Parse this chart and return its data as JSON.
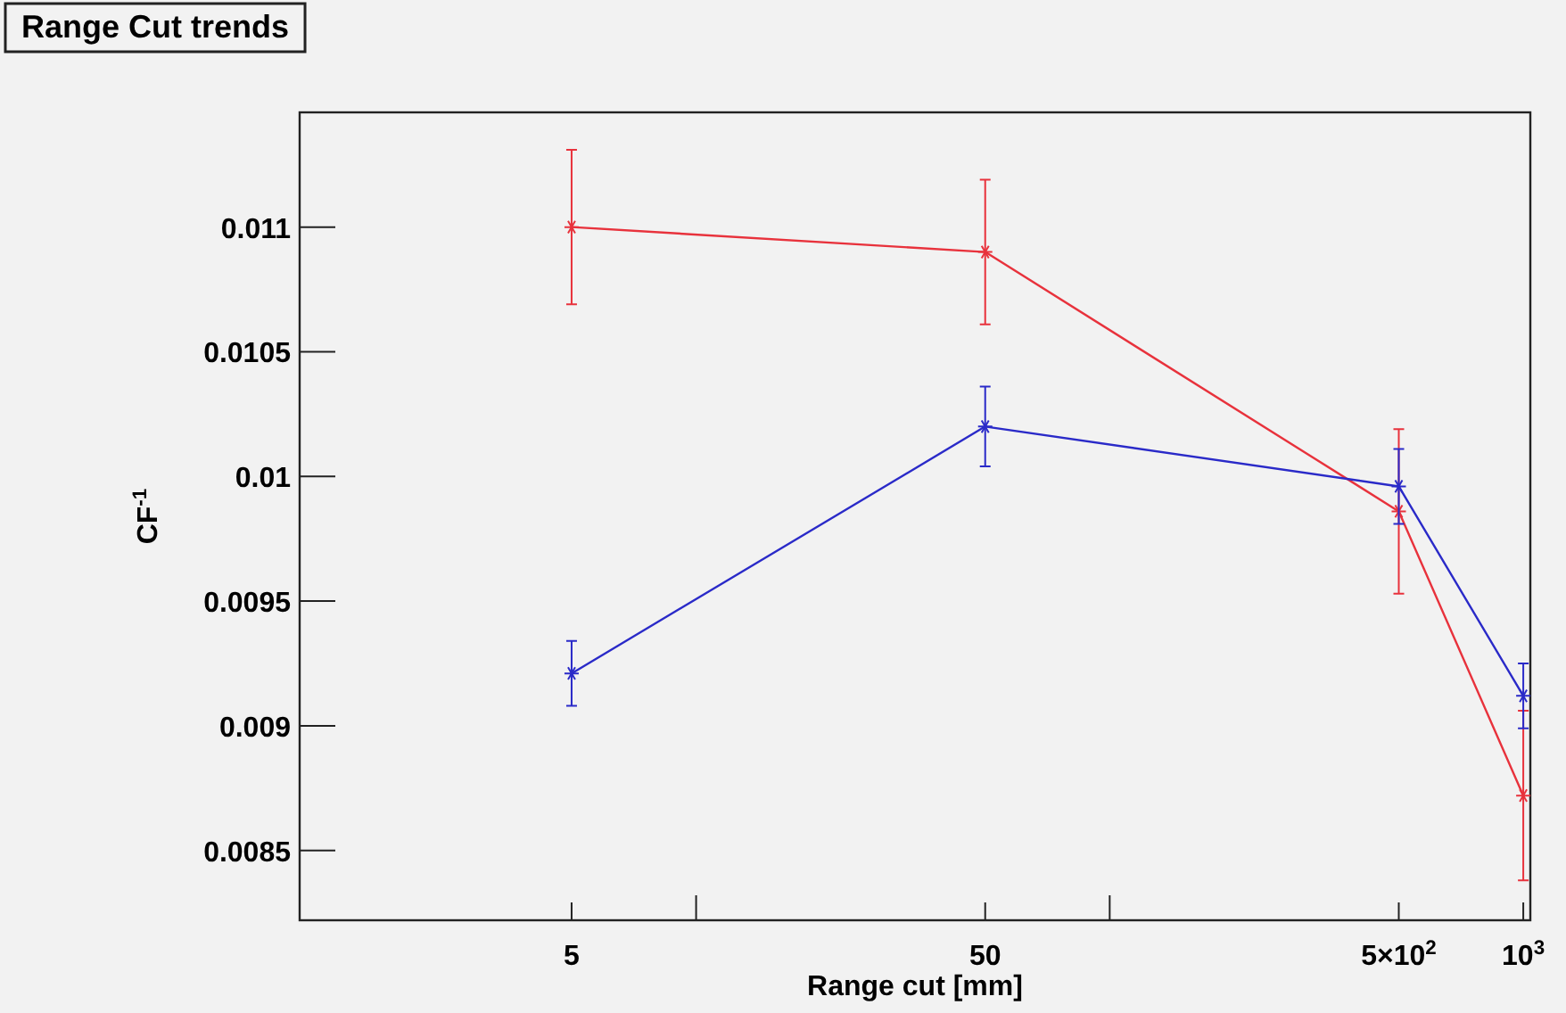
{
  "chart_data": {
    "type": "line",
    "title": "Range Cut trends",
    "xlabel": "Range cut [mm]",
    "ylabel": "CF$^{-1}$",
    "x": [
      5,
      50,
      500,
      1000
    ],
    "series": [
      {
        "color": "#e8323c",
        "values": [
          0.011,
          0.0109,
          0.00986,
          0.00872
        ],
        "errors": [
          0.00031,
          0.00029,
          0.00033,
          0.00034
        ]
      },
      {
        "color": "#2a2ac8",
        "values": [
          0.00921,
          0.0102,
          0.00996,
          0.00912
        ],
        "errors": [
          0.00013,
          0.00016,
          0.00015,
          0.00013
        ]
      }
    ],
    "log": "x",
    "xlim": [
      1.1,
      1040
    ],
    "ylim": [
      0.00822,
      0.01146
    ],
    "xticks": [
      5,
      {
        "value": 10,
        "label": null
      },
      50,
      {
        "value": 100,
        "label": null
      },
      {
        "value": 500,
        "label": "5×10$^{2}$"
      },
      {
        "value": 1000,
        "label": "10$^{3}$"
      }
    ],
    "yticks": [
      0.0085,
      0.009,
      0.0095,
      0.01,
      0.0105,
      0.011
    ],
    "grid": false,
    "marker": "cross",
    "line_style": "solid"
  }
}
